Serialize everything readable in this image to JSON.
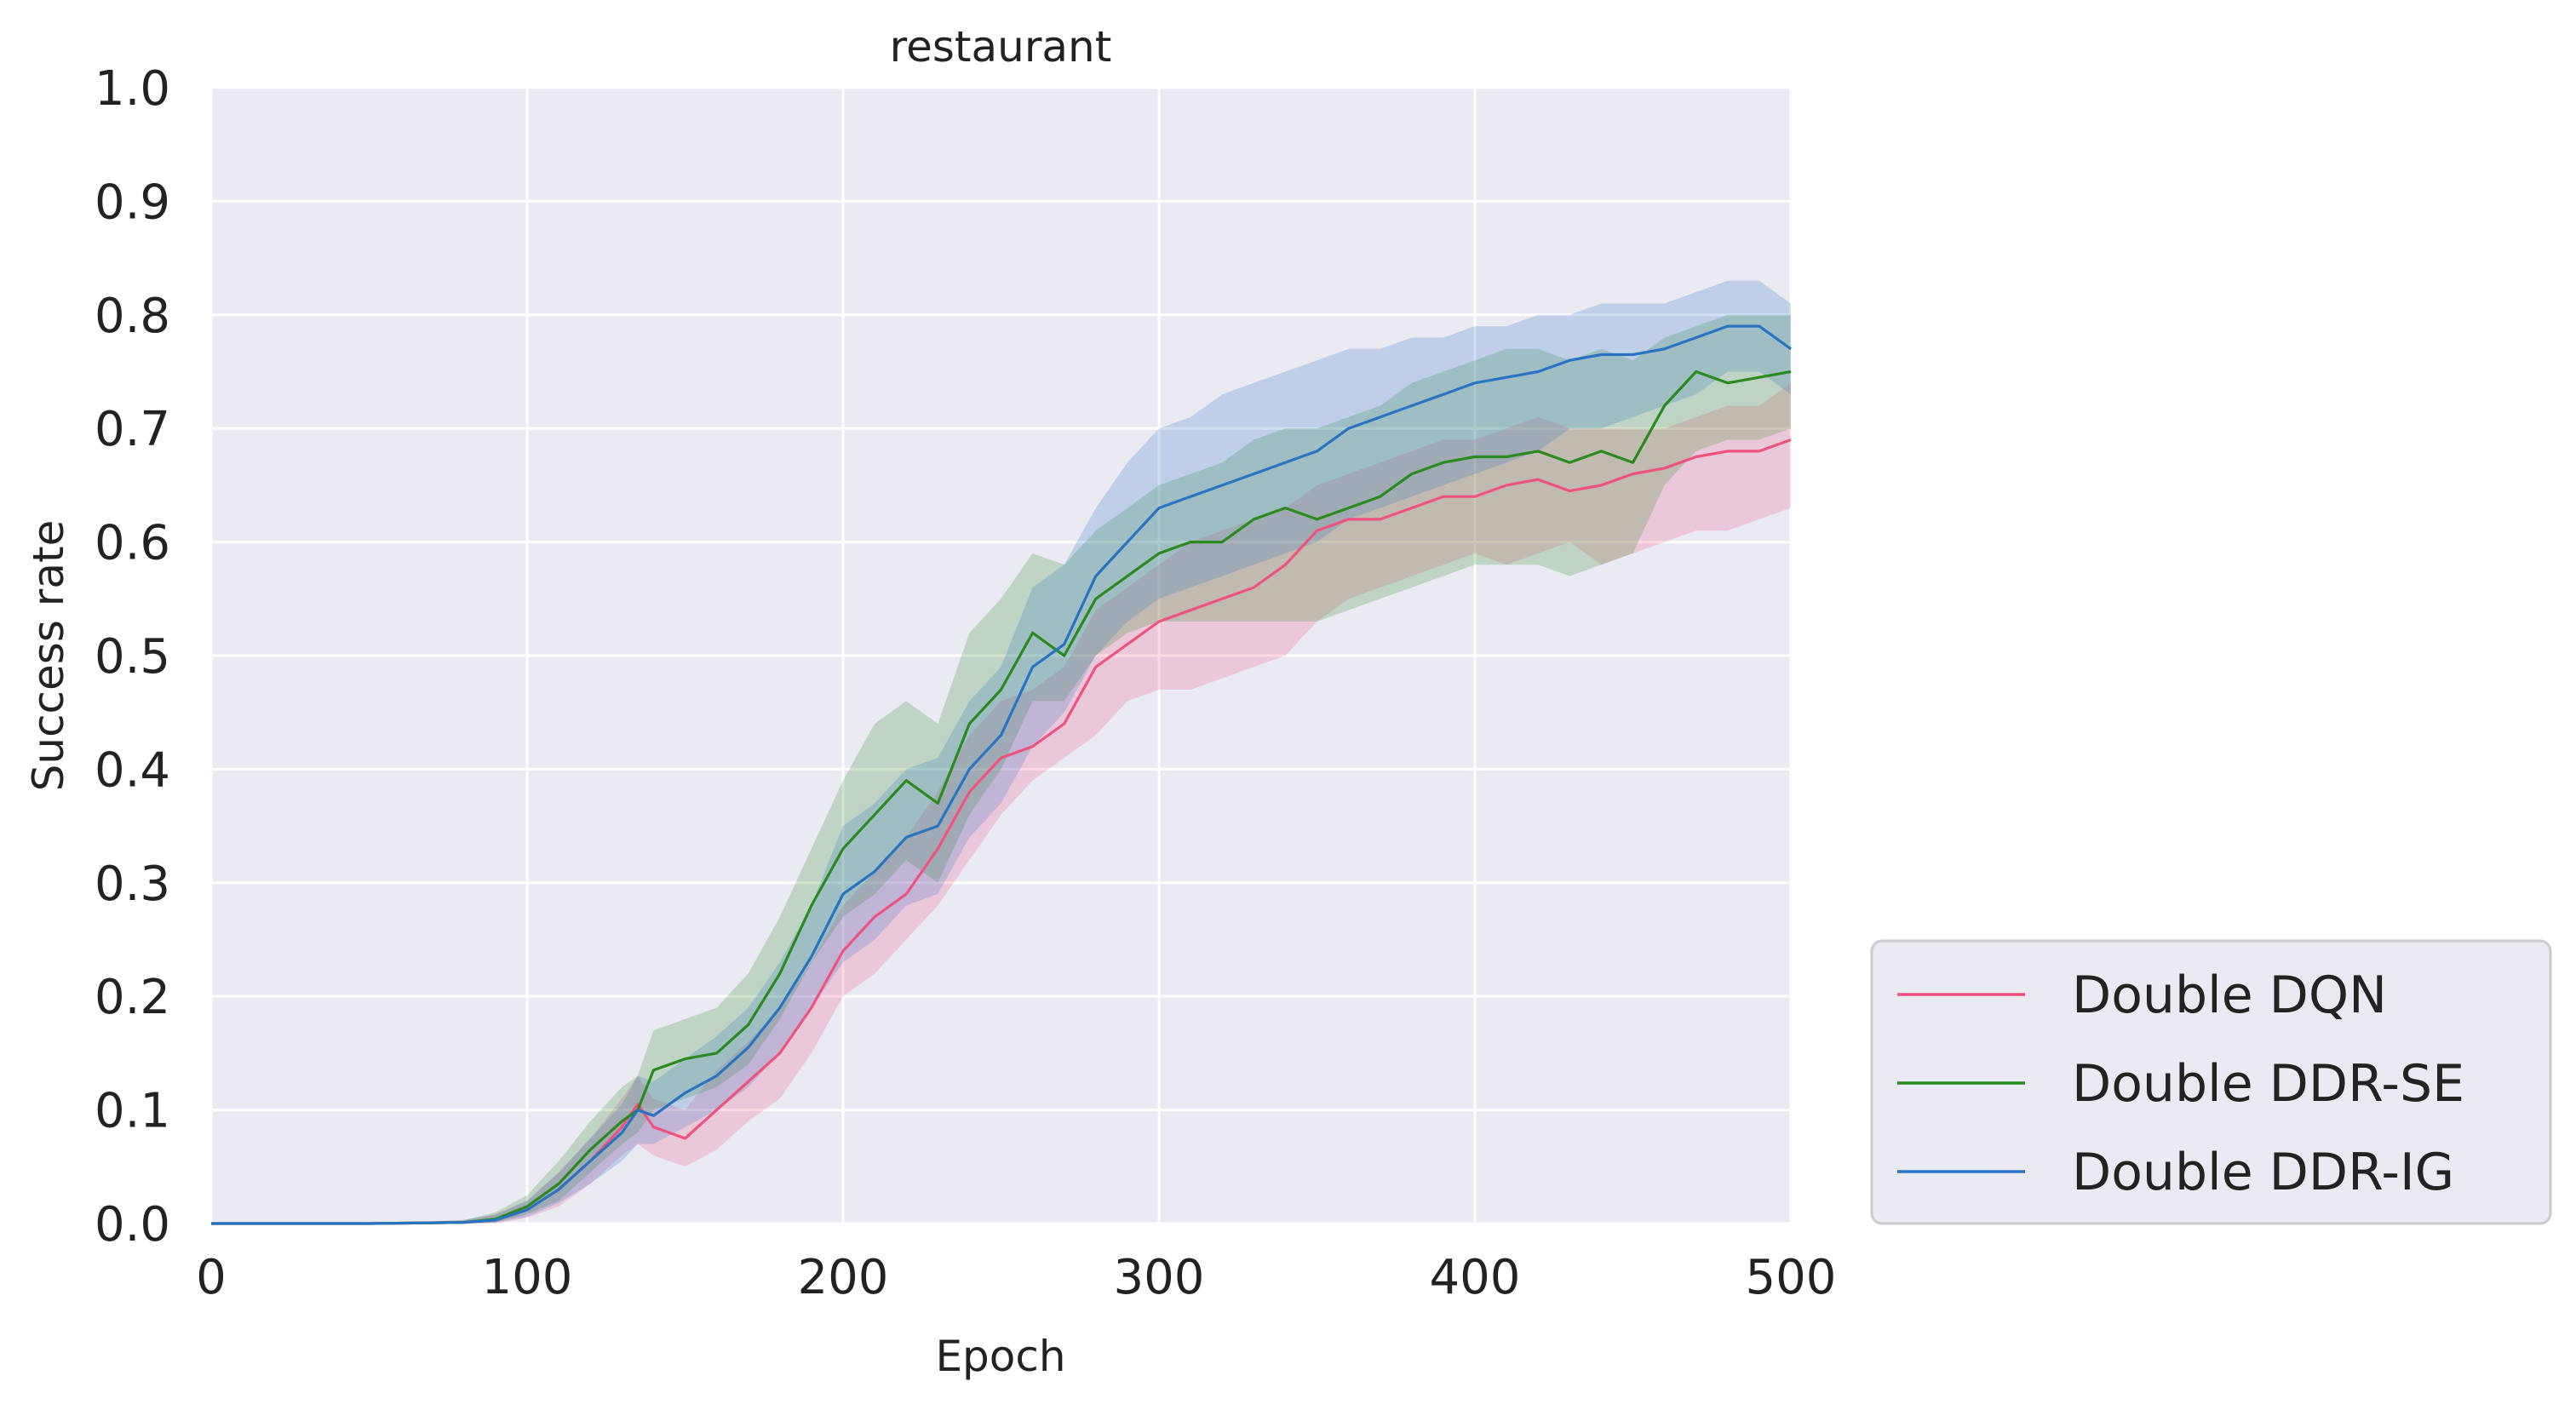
{
  "chart_data": {
    "type": "line",
    "title": "restaurant",
    "xlabel": "Epoch",
    "ylabel": "Success rate",
    "xlim": [
      0,
      500
    ],
    "ylim": [
      0.0,
      1.0
    ],
    "x_ticks": [
      "0",
      "100",
      "200",
      "300",
      "400",
      "500"
    ],
    "y_ticks": [
      "0.0",
      "0.1",
      "0.2",
      "0.3",
      "0.4",
      "0.5",
      "0.6",
      "0.7",
      "0.8",
      "0.9",
      "1.0"
    ],
    "grid": true,
    "background": "#eaeaf2",
    "legend_position": "lower-right outside",
    "x": [
      0,
      50,
      80,
      90,
      100,
      110,
      120,
      130,
      135,
      140,
      150,
      160,
      170,
      180,
      190,
      200,
      210,
      220,
      230,
      240,
      250,
      260,
      270,
      280,
      290,
      300,
      310,
      320,
      330,
      340,
      350,
      360,
      370,
      380,
      390,
      400,
      410,
      420,
      430,
      440,
      450,
      460,
      470,
      480,
      490,
      500
    ],
    "series": [
      {
        "name": "Double DQN",
        "color": "#f0527f",
        "values": [
          0,
          0,
          0.001,
          0.003,
          0.012,
          0.03,
          0.055,
          0.085,
          0.105,
          0.085,
          0.075,
          0.1,
          0.125,
          0.15,
          0.19,
          0.24,
          0.27,
          0.29,
          0.33,
          0.38,
          0.41,
          0.42,
          0.44,
          0.49,
          0.51,
          0.53,
          0.54,
          0.55,
          0.56,
          0.58,
          0.61,
          0.62,
          0.62,
          0.63,
          0.64,
          0.64,
          0.65,
          0.655,
          0.645,
          0.65,
          0.66,
          0.665,
          0.675,
          0.68,
          0.68,
          0.69
        ],
        "lower": [
          0,
          0,
          0,
          0,
          0.005,
          0.015,
          0.035,
          0.06,
          0.07,
          0.06,
          0.05,
          0.065,
          0.09,
          0.11,
          0.15,
          0.2,
          0.22,
          0.25,
          0.28,
          0.32,
          0.36,
          0.39,
          0.41,
          0.43,
          0.46,
          0.47,
          0.47,
          0.48,
          0.49,
          0.5,
          0.53,
          0.55,
          0.56,
          0.57,
          0.58,
          0.59,
          0.58,
          0.59,
          0.6,
          0.58,
          0.59,
          0.6,
          0.61,
          0.61,
          0.62,
          0.63
        ],
        "upper": [
          0,
          0,
          0.003,
          0.008,
          0.02,
          0.045,
          0.075,
          0.11,
          0.13,
          0.11,
          0.1,
          0.135,
          0.16,
          0.19,
          0.23,
          0.28,
          0.31,
          0.34,
          0.38,
          0.43,
          0.46,
          0.47,
          0.49,
          0.54,
          0.56,
          0.58,
          0.6,
          0.61,
          0.62,
          0.63,
          0.65,
          0.66,
          0.67,
          0.68,
          0.69,
          0.69,
          0.7,
          0.71,
          0.7,
          0.7,
          0.7,
          0.7,
          0.71,
          0.72,
          0.72,
          0.74
        ]
      },
      {
        "name": "Double DDR-SE",
        "color": "#2a8a1e",
        "values": [
          0,
          0,
          0.001,
          0.004,
          0.015,
          0.035,
          0.065,
          0.09,
          0.1,
          0.135,
          0.145,
          0.15,
          0.175,
          0.22,
          0.28,
          0.33,
          0.36,
          0.39,
          0.37,
          0.44,
          0.47,
          0.52,
          0.5,
          0.55,
          0.57,
          0.59,
          0.6,
          0.6,
          0.62,
          0.63,
          0.62,
          0.63,
          0.64,
          0.66,
          0.67,
          0.675,
          0.675,
          0.68,
          0.67,
          0.68,
          0.67,
          0.72,
          0.75,
          0.74,
          0.745,
          0.75
        ],
        "lower": [
          0,
          0,
          0,
          0.001,
          0.008,
          0.02,
          0.045,
          0.07,
          0.08,
          0.1,
          0.11,
          0.12,
          0.14,
          0.18,
          0.23,
          0.27,
          0.29,
          0.32,
          0.3,
          0.36,
          0.4,
          0.46,
          0.46,
          0.5,
          0.52,
          0.53,
          0.53,
          0.53,
          0.53,
          0.53,
          0.53,
          0.54,
          0.55,
          0.56,
          0.57,
          0.58,
          0.58,
          0.58,
          0.57,
          0.58,
          0.59,
          0.65,
          0.68,
          0.69,
          0.69,
          0.7
        ],
        "upper": [
          0,
          0,
          0.003,
          0.01,
          0.025,
          0.055,
          0.09,
          0.12,
          0.13,
          0.17,
          0.18,
          0.19,
          0.22,
          0.27,
          0.33,
          0.39,
          0.44,
          0.46,
          0.44,
          0.52,
          0.55,
          0.59,
          0.58,
          0.61,
          0.63,
          0.65,
          0.66,
          0.67,
          0.69,
          0.7,
          0.7,
          0.71,
          0.72,
          0.74,
          0.75,
          0.76,
          0.77,
          0.77,
          0.76,
          0.77,
          0.76,
          0.78,
          0.79,
          0.8,
          0.8,
          0.8
        ]
      },
      {
        "name": "Double DDR-IG",
        "color": "#2874c2",
        "values": [
          0,
          0,
          0.001,
          0.003,
          0.012,
          0.03,
          0.055,
          0.08,
          0.1,
          0.095,
          0.115,
          0.13,
          0.155,
          0.19,
          0.235,
          0.29,
          0.31,
          0.34,
          0.35,
          0.4,
          0.43,
          0.49,
          0.51,
          0.57,
          0.6,
          0.63,
          0.64,
          0.65,
          0.66,
          0.67,
          0.68,
          0.7,
          0.71,
          0.72,
          0.73,
          0.74,
          0.745,
          0.75,
          0.76,
          0.765,
          0.765,
          0.77,
          0.78,
          0.79,
          0.79,
          0.77
        ],
        "lower": [
          0,
          0,
          0,
          0.001,
          0.006,
          0.018,
          0.035,
          0.055,
          0.07,
          0.07,
          0.085,
          0.1,
          0.12,
          0.15,
          0.19,
          0.23,
          0.25,
          0.28,
          0.29,
          0.34,
          0.37,
          0.42,
          0.45,
          0.5,
          0.53,
          0.55,
          0.56,
          0.57,
          0.58,
          0.59,
          0.6,
          0.62,
          0.63,
          0.64,
          0.65,
          0.66,
          0.67,
          0.68,
          0.7,
          0.7,
          0.71,
          0.72,
          0.73,
          0.75,
          0.75,
          0.73
        ],
        "upper": [
          0,
          0,
          0.003,
          0.008,
          0.02,
          0.045,
          0.075,
          0.105,
          0.13,
          0.125,
          0.145,
          0.165,
          0.19,
          0.23,
          0.28,
          0.35,
          0.37,
          0.4,
          0.41,
          0.46,
          0.49,
          0.56,
          0.58,
          0.63,
          0.67,
          0.7,
          0.71,
          0.73,
          0.74,
          0.75,
          0.76,
          0.77,
          0.77,
          0.78,
          0.78,
          0.79,
          0.79,
          0.8,
          0.8,
          0.81,
          0.81,
          0.81,
          0.82,
          0.83,
          0.83,
          0.81
        ]
      }
    ]
  }
}
